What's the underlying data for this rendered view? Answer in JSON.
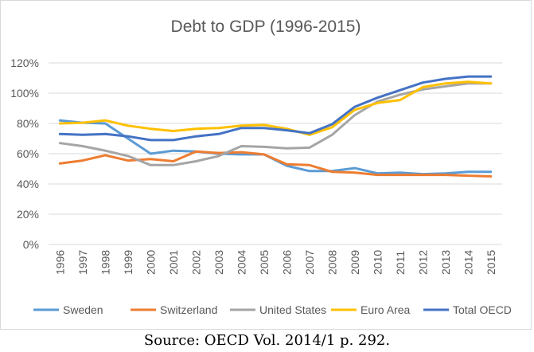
{
  "caption": "Source: OECD Vol. 2014/1 p. 292.",
  "chart_data": {
    "type": "line",
    "title": "Debt to GDP (1996-2015)",
    "xlabel": "",
    "ylabel": "",
    "x": [
      "1996",
      "1997",
      "1998",
      "1999",
      "2000",
      "2001",
      "2002",
      "2003",
      "2004",
      "2005",
      "2006",
      "2007",
      "2008",
      "2009",
      "2010",
      "2011",
      "2012",
      "2013",
      "2014",
      "2015"
    ],
    "y_ticks": [
      "0%",
      "20%",
      "40%",
      "60%",
      "80%",
      "100%",
      "120%"
    ],
    "ylim": [
      0,
      120
    ],
    "grid": "horizontal",
    "legend_position": "bottom",
    "series": [
      {
        "name": "Sweden",
        "color": "#5b9bd5",
        "values": [
          82,
          80.5,
          80,
          70,
          60,
          62,
          61.5,
          60,
          59.5,
          59.5,
          52,
          48.5,
          48.5,
          50.5,
          47,
          47.5,
          46.5,
          47,
          48,
          48
        ]
      },
      {
        "name": "Switzerland",
        "color": "#ed7d31",
        "values": [
          53.5,
          55.5,
          59,
          55.5,
          56.5,
          55,
          61.5,
          60.5,
          61,
          59.5,
          53,
          52.5,
          48,
          47.5,
          46,
          46,
          46,
          46,
          45.5,
          45
        ]
      },
      {
        "name": "United States",
        "color": "#a5a5a5",
        "values": [
          67,
          65,
          62,
          58.5,
          52.5,
          52.5,
          55,
          58.5,
          65,
          64.5,
          63.5,
          64,
          72.5,
          85.5,
          94.5,
          99,
          102.5,
          104.5,
          106.5,
          106.5
        ]
      },
      {
        "name": "Euro Area",
        "color": "#ffc000",
        "values": [
          80,
          80.5,
          82,
          78.5,
          76.5,
          75,
          76.5,
          77,
          78.5,
          79,
          76.5,
          72.5,
          77.5,
          89,
          93.5,
          95.5,
          104,
          106.5,
          107.5,
          106.5
        ]
      },
      {
        "name": "Total OECD",
        "color": "#4472c4",
        "values": [
          73,
          72.5,
          73,
          71.5,
          69,
          69,
          71.5,
          73,
          77,
          77,
          75.5,
          73.5,
          79.5,
          91,
          97,
          102,
          107,
          109.5,
          111,
          111
        ]
      }
    ]
  }
}
